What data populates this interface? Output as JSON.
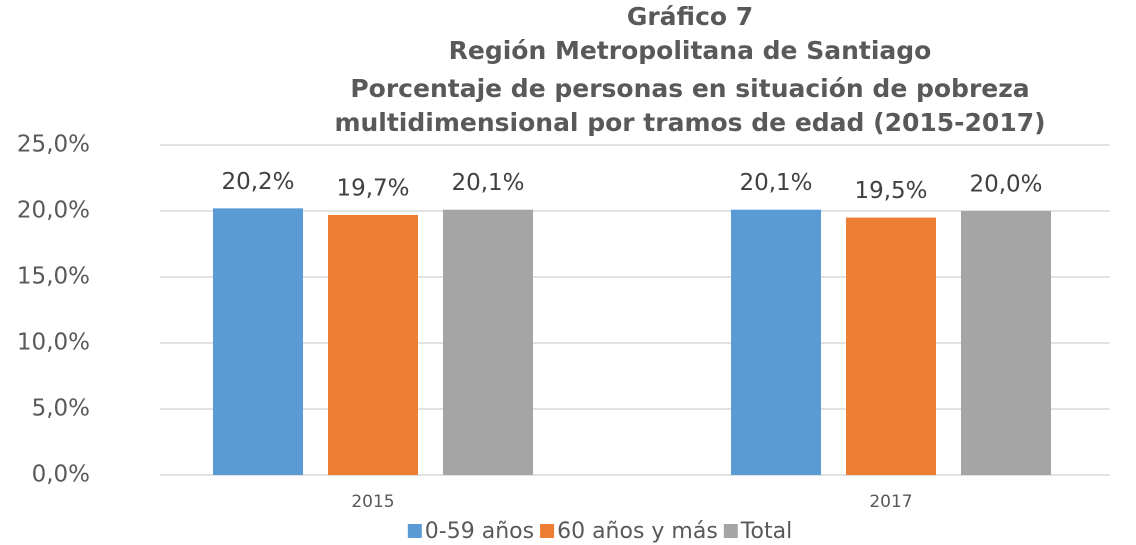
{
  "chart_data": {
    "type": "bar",
    "title": [
      "Gráfico 7",
      "Región Metropolitana de Santiago",
      "Porcentaje de personas en situación de pobreza",
      "multidimensional por tramos de edad (2015-2017)"
    ],
    "categories": [
      "2015",
      "2017"
    ],
    "series": [
      {
        "name": "0-59 años",
        "color": "#5b9bd5",
        "values": [
          20.2,
          20.1
        ],
        "value_labels": [
          "20,2%",
          "20,1%"
        ]
      },
      {
        "name": "60 años y más",
        "color": "#ed7d31",
        "values": [
          19.7,
          19.5
        ],
        "value_labels": [
          "19,7%",
          "19,5%"
        ]
      },
      {
        "name": "Total",
        "color": "#a5a5a5",
        "values": [
          20.1,
          20.0
        ],
        "value_labels": [
          "20,1%",
          "20,0%"
        ]
      }
    ],
    "ylim": [
      0,
      25
    ],
    "yticks": [
      {
        "value": 0,
        "label": "0,0%"
      },
      {
        "value": 5,
        "label": "5,0%"
      },
      {
        "value": 10,
        "label": "10,0%"
      },
      {
        "value": 15,
        "label": "15,0%"
      },
      {
        "value": 20,
        "label": "20,0%"
      },
      {
        "value": 25,
        "label": "25,0%"
      }
    ],
    "grid": true,
    "legend": "bottom"
  }
}
